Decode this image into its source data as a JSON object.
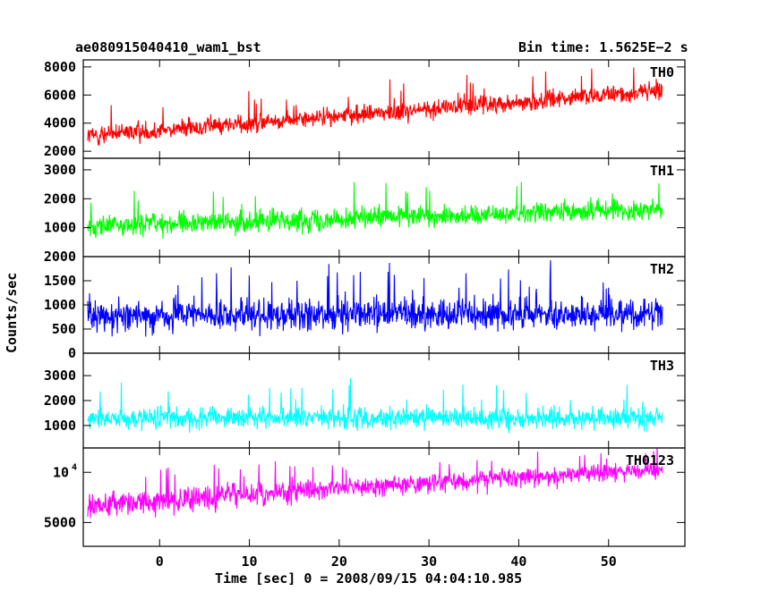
{
  "chart_data": {
    "type": "line",
    "title_left": "ae080915040410_wam1_bst",
    "title_right": "Bin time: 1.5625E−2 s",
    "xlabel": "Time [sec] 0 = 2008/09/15 04:04:10.985",
    "ylabel": "Counts/sec",
    "xlim": [
      -8.5,
      58.5
    ],
    "x_ticks": [
      0,
      10,
      20,
      30,
      40,
      50
    ],
    "x_tick_labels": [
      "0",
      "10",
      "20",
      "30",
      "40",
      "50"
    ],
    "data_x_range": [
      -8,
      56
    ],
    "panels": [
      {
        "name": "TH0",
        "color": "#ff0000",
        "ylim": [
          1500,
          8500
        ],
        "y_ticks": [
          2000,
          4000,
          6000,
          8000
        ],
        "y_tick_labels": [
          "2000",
          "4000",
          "6000",
          "8000"
        ],
        "trend_start": 3100,
        "trend_end": 6300,
        "spread": 1000
      },
      {
        "name": "TH1",
        "color": "#00ff00",
        "ylim": [
          0,
          3400
        ],
        "y_ticks": [
          1000,
          2000,
          3000
        ],
        "y_tick_labels": [
          "1000",
          "2000",
          "3000"
        ],
        "trend_start": 1050,
        "trend_end": 1650,
        "spread": 550
      },
      {
        "name": "TH2",
        "color": "#0000ff",
        "ylim": [
          0,
          2000
        ],
        "y_ticks": [
          0,
          500,
          1000,
          1500,
          2000
        ],
        "y_tick_labels": [
          "0",
          "500",
          "1000",
          "1500",
          "2000"
        ],
        "trend_start": 780,
        "trend_end": 820,
        "spread": 480
      },
      {
        "name": "TH3",
        "color": "#00ffff",
        "ylim": [
          100,
          3900
        ],
        "y_ticks": [
          1000,
          2000,
          3000
        ],
        "y_tick_labels": [
          "1000",
          "2000",
          "3000"
        ],
        "trend_start": 1300,
        "trend_end": 1300,
        "spread": 650
      },
      {
        "name": "TH0123",
        "color": "#ff00ff",
        "ylim": [
          3600,
          14000
        ],
        "log": true,
        "y_ticks": [
          5000,
          10000
        ],
        "y_tick_labels": [
          "5000",
          "10^4"
        ],
        "trend_start": 6300,
        "trend_end": 10300,
        "spread": 1700
      }
    ]
  }
}
